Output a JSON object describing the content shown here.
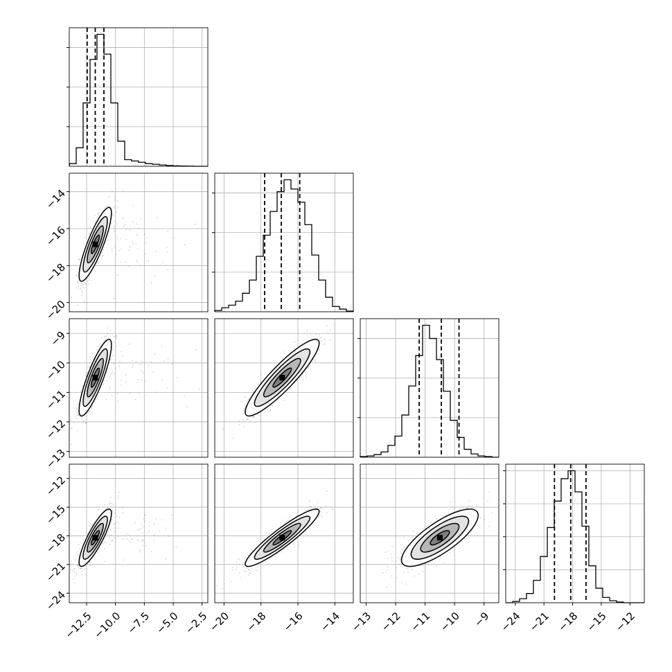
{
  "chart_data": {
    "type": "corner",
    "title": "",
    "params": [
      {
        "lim": [
          -14.0,
          -2.0
        ],
        "ticks": [
          -12.5,
          -10.0,
          -7.5,
          -5.0,
          -2.5
        ],
        "tick_labels": [
          "−12.5",
          "−10.0",
          "−7.5",
          "−5.0",
          "−2.5"
        ],
        "quantiles": [
          -12.45,
          -11.75,
          -11.0
        ],
        "hist": {
          "edges_start": -14.0,
          "bin_width": 0.6,
          "counts": [
            2,
            14,
            48,
            81,
            100,
            85,
            48,
            19,
            5,
            4,
            3,
            2,
            1.5,
            1,
            0.6,
            0.3,
            0.2,
            0.1,
            0,
            0
          ],
          "grid_ticks": [
            30,
            60,
            90
          ]
        },
        "mean": -11.75,
        "sd": 0.7
      },
      {
        "lim": [
          -20.5,
          -13.0
        ],
        "ticks": [
          -20,
          -18,
          -16,
          -14
        ],
        "tick_labels": [
          "−20",
          "−18",
          "−16",
          "−14"
        ],
        "quantiles": [
          -17.8,
          -16.9,
          -15.9
        ],
        "hist": {
          "edges_start": -20.5,
          "bin_width": 0.375,
          "counts": [
            1,
            3,
            5,
            8,
            14,
            24,
            42,
            58,
            76,
            91,
            100,
            93,
            83,
            66,
            43,
            24,
            11,
            4,
            2,
            0.5
          ],
          "grid_ticks": [
            30,
            60,
            90
          ]
        },
        "mean": -16.85,
        "sd": 1.0
      },
      {
        "lim": [
          -13.2,
          -8.5
        ],
        "ticks": [
          -13,
          -12,
          -11,
          -10,
          -9
        ],
        "tick_labels": [
          "−13",
          "−12",
          "−11",
          "−10",
          "−9"
        ],
        "quantiles": [
          -11.2,
          -10.45,
          -9.85
        ],
        "hist": {
          "edges_start": -13.2,
          "bin_width": 0.235,
          "counts": [
            0.5,
            1,
            2,
            4,
            9,
            16,
            32,
            54,
            77,
            100,
            90,
            74,
            50,
            28,
            15,
            6,
            2.5,
            1,
            0.5,
            0
          ],
          "grid_ticks": [
            30,
            60,
            90
          ]
        },
        "mean": -10.5,
        "sd": 0.65
      },
      {
        "lim": [
          -25.0,
          -10.5
        ],
        "ticks": [
          -24,
          -21,
          -18,
          -15,
          -12
        ],
        "tick_labels": [
          "−24",
          "−21",
          "−18",
          "−15",
          "−12"
        ],
        "quantiles": [
          -19.9,
          -18.2,
          -16.6
        ],
        "hist": {
          "edges_start": -25.0,
          "bin_width": 0.725,
          "counts": [
            0,
            1,
            3,
            7,
            17,
            35,
            57,
            77,
            94,
            100,
            84,
            58,
            28,
            11,
            4,
            1.5,
            0.5,
            0,
            0,
            0
          ],
          "grid_ticks": [
            25,
            50,
            75,
            100
          ]
        },
        "mean": -18.2,
        "sd": 1.5
      }
    ],
    "pairs": [
      {
        "row": 1,
        "col": 0,
        "rho": 0.85
      },
      {
        "row": 2,
        "col": 0,
        "rho": 0.85
      },
      {
        "row": 2,
        "col": 1,
        "rho": 0.9
      },
      {
        "row": 3,
        "col": 0,
        "rho": 0.85
      },
      {
        "row": 3,
        "col": 1,
        "rho": 0.92
      },
      {
        "row": 3,
        "col": 2,
        "rho": 0.78
      }
    ],
    "contour_levels_sigma": [
      0.5,
      1.0,
      1.5,
      2.0
    ],
    "grid": true,
    "colors": {
      "hist": "#000000",
      "points": "#808080",
      "density_max": "#000000"
    }
  }
}
